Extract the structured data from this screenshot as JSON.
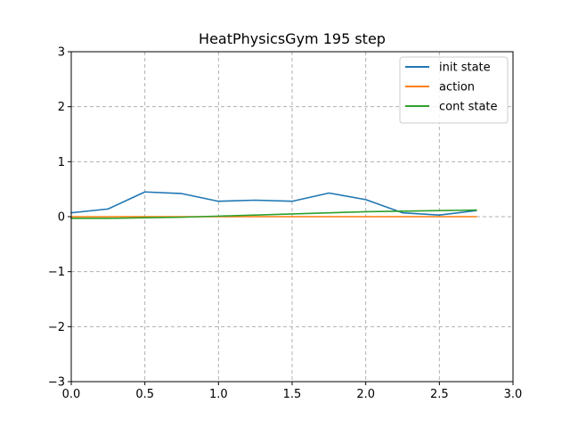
{
  "chart_data": {
    "type": "line",
    "title": "HeatPhysicsGym 195 step",
    "xlabel": "",
    "ylabel": "",
    "xlim": [
      0.0,
      3.0
    ],
    "ylim": [
      -3,
      3
    ],
    "xticks": [
      0.0,
      0.5,
      1.0,
      1.5,
      2.0,
      2.5,
      3.0
    ],
    "xtick_labels": [
      "0.0",
      "0.5",
      "1.0",
      "1.5",
      "2.0",
      "2.5",
      "3.0"
    ],
    "yticks": [
      -3,
      -2,
      -1,
      0,
      1,
      2,
      3
    ],
    "ytick_labels": [
      "−3",
      "−2",
      "−1",
      "0",
      "1",
      "2",
      "3"
    ],
    "grid": true,
    "legend_position": "top-right",
    "x": [
      0.0,
      0.25,
      0.5,
      0.75,
      1.0,
      1.25,
      1.5,
      1.75,
      2.0,
      2.25,
      2.5,
      2.75
    ],
    "series": [
      {
        "name": "init state",
        "color": "#1f77b4",
        "values": [
          0.07,
          0.14,
          0.45,
          0.42,
          0.28,
          0.3,
          0.28,
          0.43,
          0.31,
          0.07,
          0.03,
          0.11
        ]
      },
      {
        "name": "action",
        "color": "#ff7f0e",
        "values": [
          0.0,
          0.0,
          0.0,
          0.0,
          0.0,
          0.0,
          0.0,
          0.0,
          0.0,
          0.0,
          0.0,
          0.0
        ]
      },
      {
        "name": "cont state",
        "color": "#2ca02c",
        "values": [
          -0.03,
          -0.03,
          -0.02,
          -0.01,
          0.01,
          0.03,
          0.05,
          0.07,
          0.09,
          0.1,
          0.11,
          0.12
        ]
      }
    ]
  }
}
